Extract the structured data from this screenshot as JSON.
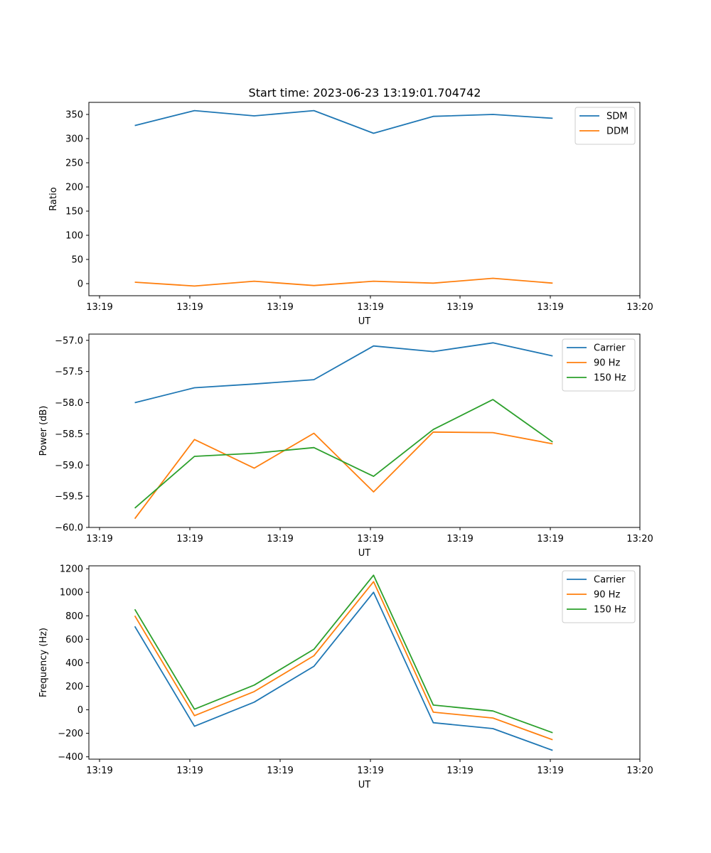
{
  "figure": {
    "title": "Start time: 2023-06-23 13:19:01.704742"
  },
  "chart_data": [
    {
      "type": "line",
      "xlabel": "UT",
      "ylabel": "Ratio",
      "x_ticks": [
        "13:19",
        "13:19",
        "13:19",
        "13:19",
        "13:19",
        "13:19",
        "13:20"
      ],
      "xlim": [
        0,
        6
      ],
      "x": [
        0.5,
        1.15,
        1.8,
        2.45,
        3.1,
        3.75,
        4.4,
        5.05
      ],
      "ylim": [
        -25,
        375
      ],
      "yticks": [
        0,
        50,
        100,
        150,
        200,
        250,
        300,
        350
      ],
      "legend": "top-right",
      "grid": false,
      "series": [
        {
          "name": "SDM",
          "color": "#1f77b4",
          "values": [
            327,
            358,
            347,
            358,
            311,
            346,
            350,
            342
          ]
        },
        {
          "name": "DDM",
          "color": "#ff7f0e",
          "values": [
            3,
            -5,
            5,
            -4,
            5,
            1,
            11,
            1
          ]
        }
      ]
    },
    {
      "type": "line",
      "xlabel": "UT",
      "ylabel": "Power (dB)",
      "x_ticks": [
        "13:19",
        "13:19",
        "13:19",
        "13:19",
        "13:19",
        "13:19",
        "13:20"
      ],
      "xlim": [
        0,
        6
      ],
      "x": [
        0.5,
        1.15,
        1.8,
        2.45,
        3.1,
        3.75,
        4.4,
        5.05
      ],
      "ylim": [
        -60.0,
        -56.9
      ],
      "yticks": [
        -60.0,
        -59.5,
        -59.0,
        -58.5,
        -58.0,
        -57.5,
        -57.0
      ],
      "ytick_labels": [
        "−60.0",
        "−59.5",
        "−59.0",
        "−58.5",
        "−58.0",
        "−57.5",
        "−57.0"
      ],
      "legend": "top-right",
      "grid": false,
      "series": [
        {
          "name": "Carrier",
          "color": "#1f77b4",
          "values": [
            -58.0,
            -57.76,
            -57.7,
            -57.63,
            -57.09,
            -57.18,
            -57.04,
            -57.25
          ]
        },
        {
          "name": "90 Hz",
          "color": "#ff7f0e",
          "values": [
            -59.86,
            -58.59,
            -59.05,
            -58.49,
            -59.43,
            -58.47,
            -58.48,
            -58.66
          ]
        },
        {
          "name": "150 Hz",
          "color": "#2ca02c",
          "values": [
            -59.69,
            -58.86,
            -58.81,
            -58.72,
            -59.18,
            -58.43,
            -57.95,
            -58.63
          ]
        }
      ]
    },
    {
      "type": "line",
      "xlabel": "UT",
      "ylabel": "Frequency (Hz)",
      "x_ticks": [
        "13:19",
        "13:19",
        "13:19",
        "13:19",
        "13:19",
        "13:19",
        "13:20"
      ],
      "xlim": [
        0,
        6
      ],
      "x": [
        0.5,
        1.15,
        1.8,
        2.45,
        3.1,
        3.75,
        4.4,
        5.05
      ],
      "ylim": [
        -420,
        1225
      ],
      "yticks": [
        -400,
        -200,
        0,
        200,
        400,
        600,
        800,
        1000,
        1200
      ],
      "ytick_labels": [
        "−400",
        "−200",
        "0",
        "200",
        "400",
        "600",
        "800",
        "1000",
        "1200"
      ],
      "legend": "top-right",
      "grid": false,
      "series": [
        {
          "name": "Carrier",
          "color": "#1f77b4",
          "values": [
            710,
            -140,
            65,
            370,
            1000,
            -110,
            -160,
            -345
          ]
        },
        {
          "name": "90 Hz",
          "color": "#ff7f0e",
          "values": [
            800,
            -50,
            155,
            460,
            1090,
            -20,
            -70,
            -255
          ]
        },
        {
          "name": "150 Hz",
          "color": "#2ca02c",
          "values": [
            855,
            5,
            210,
            515,
            1145,
            40,
            -10,
            -195
          ]
        }
      ]
    }
  ]
}
